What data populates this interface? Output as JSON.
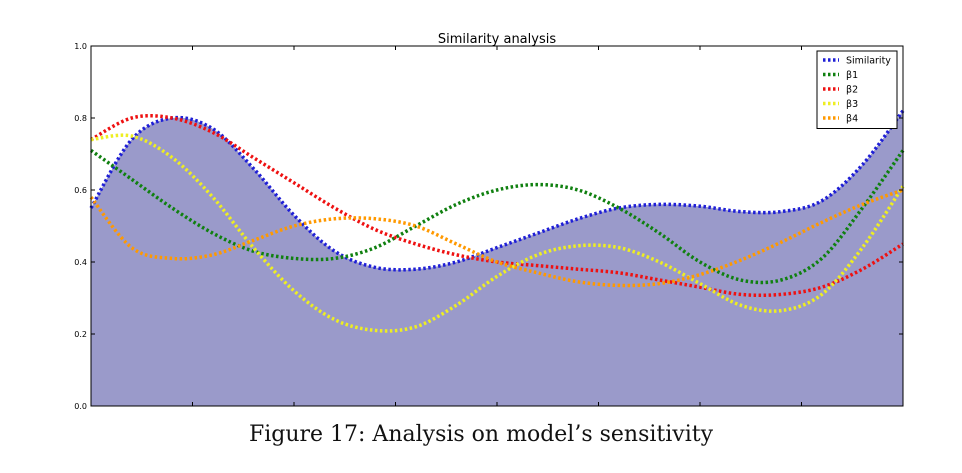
{
  "chart_data": {
    "type": "area",
    "title": "Similarity analysis",
    "xlabel": "",
    "ylabel": "",
    "ylim": [
      0,
      1.0
    ],
    "yticks": [
      "0.0",
      "0.2",
      "0.4",
      "0.6",
      "0.8",
      "1.0"
    ],
    "x": [
      0,
      0.05,
      0.1,
      0.15,
      0.2,
      0.25,
      0.3,
      0.35,
      0.4,
      0.45,
      0.5,
      0.55,
      0.6,
      0.65,
      0.7,
      0.75,
      0.8,
      0.85,
      0.9,
      0.95,
      1.0
    ],
    "grid": false,
    "legend_position": "top-right",
    "fill_color": "#9a9aca",
    "series": [
      {
        "name": "Similarity",
        "color": "#1f1fd6",
        "fill": true,
        "values": [
          0.55,
          0.74,
          0.8,
          0.77,
          0.66,
          0.53,
          0.43,
          0.385,
          0.38,
          0.4,
          0.44,
          0.48,
          0.52,
          0.55,
          0.56,
          0.555,
          0.54,
          0.54,
          0.57,
          0.67,
          0.82
        ]
      },
      {
        "name": "β1",
        "color": "#108010",
        "fill": false,
        "values": [
          0.71,
          0.63,
          0.55,
          0.48,
          0.43,
          0.41,
          0.41,
          0.44,
          0.5,
          0.56,
          0.6,
          0.615,
          0.6,
          0.55,
          0.48,
          0.4,
          0.35,
          0.35,
          0.41,
          0.55,
          0.71
        ]
      },
      {
        "name": "β2",
        "color": "#ee1111",
        "fill": false,
        "values": [
          0.74,
          0.8,
          0.8,
          0.76,
          0.69,
          0.62,
          0.55,
          0.49,
          0.45,
          0.42,
          0.4,
          0.39,
          0.38,
          0.37,
          0.35,
          0.33,
          0.31,
          0.31,
          0.33,
          0.38,
          0.45
        ]
      },
      {
        "name": "β3",
        "color": "#eeee22",
        "fill": false,
        "values": [
          0.74,
          0.75,
          0.69,
          0.58,
          0.44,
          0.32,
          0.24,
          0.21,
          0.22,
          0.28,
          0.36,
          0.42,
          0.445,
          0.44,
          0.4,
          0.34,
          0.28,
          0.265,
          0.31,
          0.44,
          0.61
        ]
      },
      {
        "name": "β4",
        "color": "#ff9900",
        "fill": false,
        "values": [
          0.58,
          0.44,
          0.41,
          0.42,
          0.46,
          0.5,
          0.52,
          0.52,
          0.5,
          0.45,
          0.4,
          0.37,
          0.345,
          0.335,
          0.34,
          0.365,
          0.405,
          0.455,
          0.51,
          0.56,
          0.6
        ]
      }
    ]
  },
  "caption": "Figure 17: Analysis on model’s sensitivity"
}
